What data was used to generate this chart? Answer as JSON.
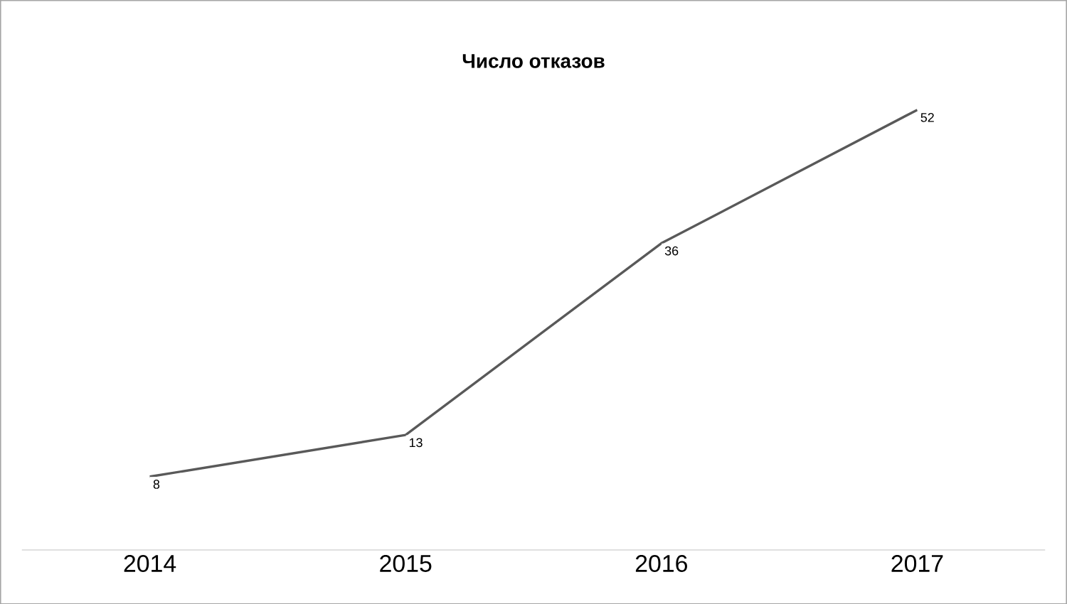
{
  "chart_data": {
    "type": "line",
    "title": "Число отказов",
    "categories": [
      "2014",
      "2015",
      "2016",
      "2017"
    ],
    "values": [
      8,
      13,
      36,
      52
    ],
    "color": "#595959",
    "tick_labels": "x",
    "data_labels": true,
    "marker": "none"
  }
}
